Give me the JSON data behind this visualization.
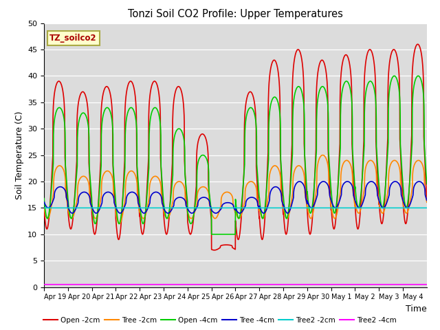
{
  "title": "Tonzi Soil CO2 Profile: Upper Temperatures",
  "xlabel": "Time",
  "ylabel": "Soil Temperature (C)",
  "watermark": "TZ_soilco2",
  "ylim": [
    0,
    50
  ],
  "yticks": [
    0,
    5,
    10,
    15,
    20,
    25,
    30,
    35,
    40,
    45,
    50
  ],
  "background_color": "#dcdcdc",
  "plot_bg": "#dcdcdc",
  "series": [
    {
      "label": "Open -2cm",
      "color": "#dd0000",
      "lw": 1.2
    },
    {
      "label": "Tree -2cm",
      "color": "#ff8800",
      "lw": 1.2
    },
    {
      "label": "Open -4cm",
      "color": "#00cc00",
      "lw": 1.2
    },
    {
      "label": "Tree -4cm",
      "color": "#0000cc",
      "lw": 1.2
    },
    {
      "label": "Tree2 -2cm",
      "color": "#00cccc",
      "lw": 1.2
    },
    {
      "label": "Tree2 -4cm",
      "color": "#ff00ff",
      "lw": 1.2
    }
  ],
  "xtick_labels": [
    "Apr 19",
    "Apr 20",
    "Apr 21",
    "Apr 22",
    "Apr 23",
    "Apr 24",
    "Apr 25",
    "Apr 26",
    "Apr 27",
    "Apr 28",
    "Apr 29",
    "Apr 30",
    "May 1",
    "May 2",
    "May 3",
    "May 4"
  ],
  "n_days": 16,
  "pts_per_day": 144
}
